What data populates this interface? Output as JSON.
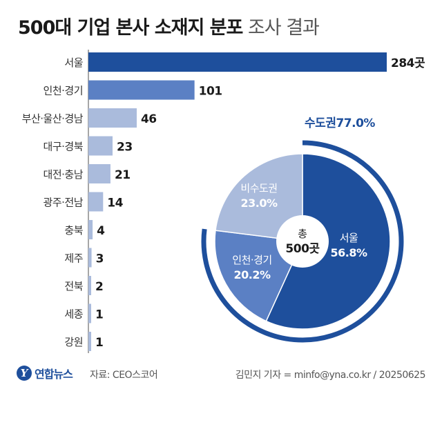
{
  "title": {
    "bold": "500대 기업 본사 소재지 분포",
    "light": "조사 결과"
  },
  "chart_data": [
    {
      "type": "bar",
      "orientation": "horizontal",
      "categories": [
        "서울",
        "인천·경기",
        "부산·울산·경남",
        "대구·경북",
        "대전·충남",
        "광주·전남",
        "충북",
        "제주",
        "전북",
        "세종",
        "강원"
      ],
      "values": [
        284,
        101,
        46,
        23,
        21,
        14,
        4,
        3,
        2,
        1,
        1
      ],
      "value_labels": [
        "284곳",
        "101",
        "46",
        "23",
        "21",
        "14",
        "4",
        "3",
        "2",
        "1",
        "1"
      ],
      "colors": [
        "#1e4f9c",
        "#5b80c4",
        "#aabbdc",
        "#aabbdc",
        "#aabbdc",
        "#aabbdc",
        "#aabbdc",
        "#aabbdc",
        "#aabbdc",
        "#aabbdc",
        "#aabbdc"
      ]
    },
    {
      "type": "pie",
      "style": "donut",
      "slices": [
        {
          "label": "서울",
          "value": 56.8,
          "label_text": "56.8%",
          "color": "#1e4f9c"
        },
        {
          "label": "인천·경기",
          "value": 20.2,
          "label_text": "20.2%",
          "color": "#5b80c4"
        },
        {
          "label": "비수도권",
          "value": 23.0,
          "label_text": "23.0%",
          "color": "#aabbdc"
        }
      ],
      "center_label": {
        "line1": "총",
        "line2": "500곳"
      },
      "arc_label": "수도권77.0%",
      "arc_value": 77.0,
      "arc_color": "#1e4f9c"
    }
  ],
  "footer": {
    "logo_mark": "Y",
    "logo_text": "연합뉴스",
    "source": "자료: CEO스코어",
    "credit": "김민지 기자 = minfo@yna.co.kr / 20250625"
  }
}
